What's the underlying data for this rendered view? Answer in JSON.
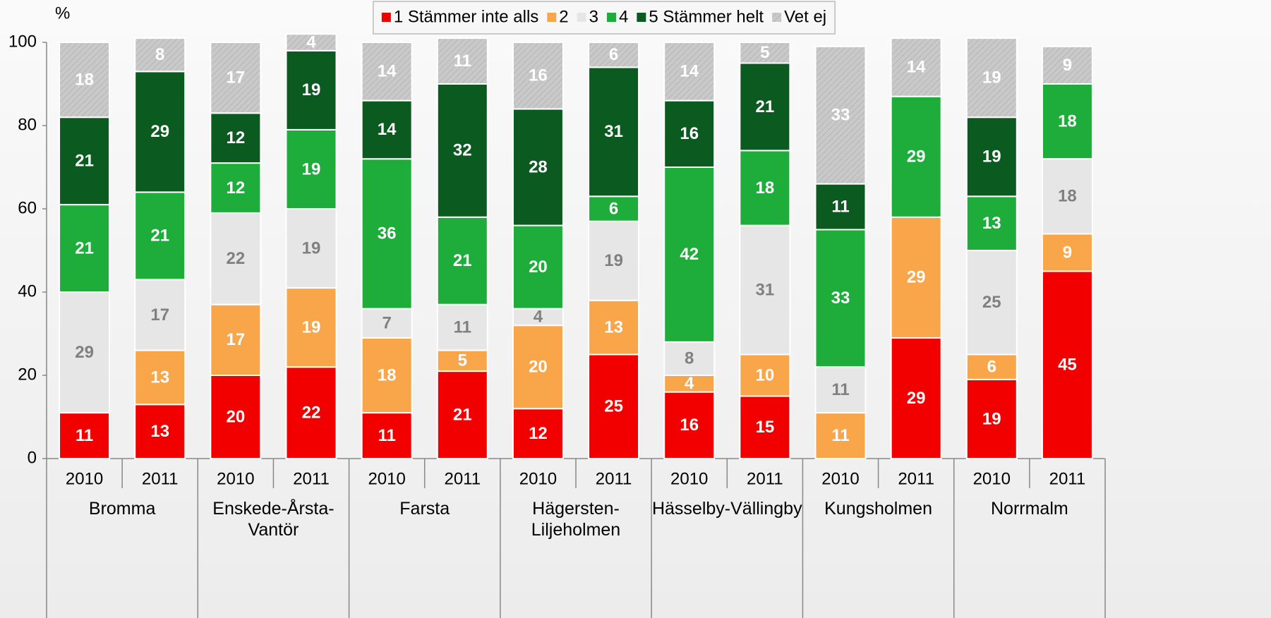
{
  "chart_data": {
    "type": "stacked_bar",
    "y_unit_label": "%",
    "categories": [
      "2010",
      "2011",
      "2010",
      "2011",
      "2010",
      "2011",
      "2010",
      "2011",
      "2010",
      "2011",
      "2010",
      "2011",
      "2010",
      "2011"
    ],
    "groups": [
      "Bromma",
      "Enskede-Årsta-Vantör",
      "Farsta",
      "Hägersten-Liljeholmen",
      "Hässelby-Vällingby",
      "Kungsholmen",
      "Norrmalm"
    ],
    "series": [
      {
        "name": "1 Stämmer inte alls",
        "color": "#f20000",
        "label_color": "#ffffff",
        "values": [
          11,
          13,
          20,
          22,
          11,
          21,
          12,
          25,
          16,
          15,
          null,
          29,
          19,
          45
        ]
      },
      {
        "name": "2",
        "color": "#f9a54a",
        "label_color": "#ffffff",
        "values": [
          null,
          13,
          17,
          19,
          18,
          5,
          20,
          13,
          4,
          10,
          11,
          29,
          6,
          9
        ]
      },
      {
        "name": "3",
        "color": "#e6e6e6",
        "label_color": "#808080",
        "values": [
          29,
          17,
          22,
          19,
          7,
          11,
          4,
          19,
          8,
          31,
          11,
          null,
          25,
          18
        ]
      },
      {
        "name": "4",
        "color": "#1ead3a",
        "label_color": "#ffffff",
        "values": [
          21,
          21,
          12,
          19,
          36,
          21,
          20,
          6,
          42,
          18,
          33,
          29,
          13,
          18
        ]
      },
      {
        "name": "5 Stämmer helt",
        "color": "#0b5a1f",
        "label_color": "#ffffff",
        "values": [
          21,
          29,
          12,
          19,
          14,
          32,
          28,
          31,
          16,
          21,
          11,
          null,
          19,
          null
        ]
      },
      {
        "name": "Vet ej",
        "color": "#c9c9c9",
        "label_color": "#ffffff",
        "hatch": true,
        "values": [
          18,
          8,
          17,
          4,
          14,
          11,
          16,
          6,
          14,
          5,
          33,
          14,
          19,
          9
        ]
      }
    ],
    "ylim": [
      0,
      100
    ],
    "yticks": [
      0,
      20,
      40,
      60,
      80,
      100
    ],
    "legend": "top"
  }
}
